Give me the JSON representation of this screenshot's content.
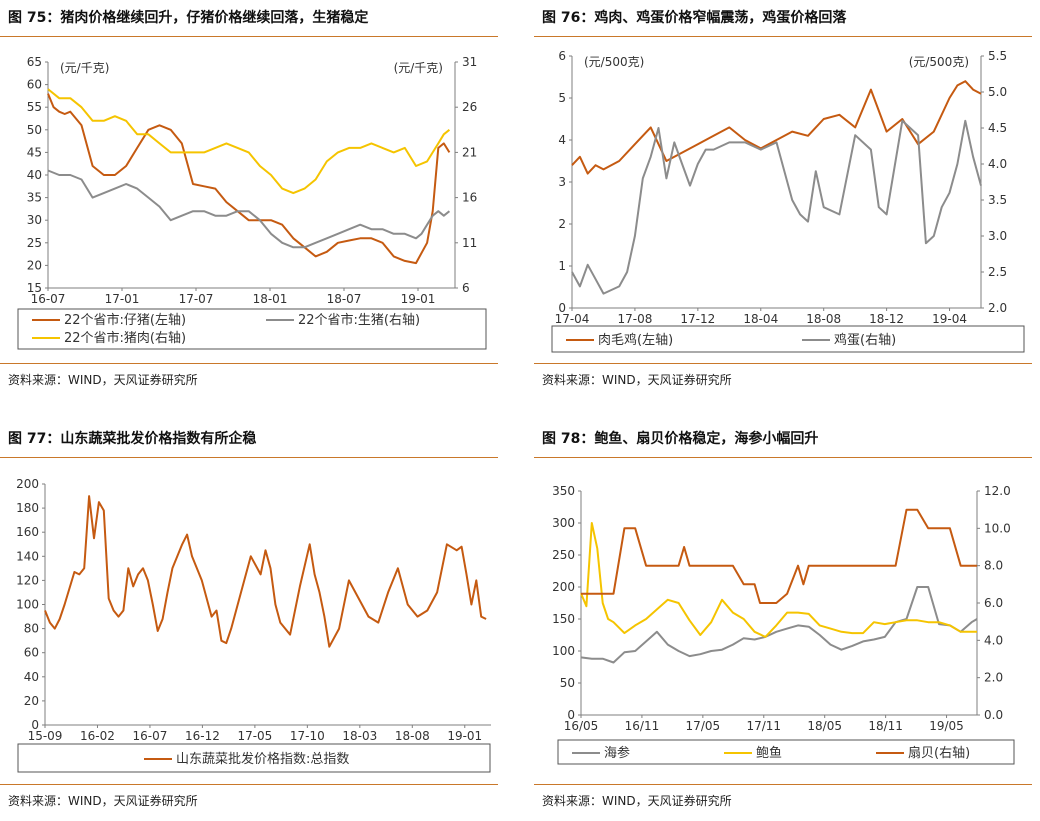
{
  "source_text": "资料来源：WIND，天风证券研究所",
  "colors": {
    "orange": "#c55a11",
    "gray": "#8c8c8c",
    "yellow": "#f5c400",
    "rule": "#c9782a"
  },
  "chart_data": [
    {
      "id": "fig75",
      "type": "line",
      "title": "图 75：猪肉价格继续回升，仔猪价格继续回落，生猪稳定",
      "left_unit": "(元/千克)",
      "right_unit": "(元/千克)",
      "xticks": [
        "16-07",
        "17-01",
        "17-07",
        "18-01",
        "18-07",
        "19-01"
      ],
      "xlim": [
        0,
        36.5
      ],
      "ylim_left": [
        15,
        65
      ],
      "yticks_left": [
        "15",
        "20",
        "25",
        "30",
        "35",
        "40",
        "45",
        "50",
        "55",
        "60",
        "65"
      ],
      "ylim_right": [
        6,
        31
      ],
      "yticks_right": [
        "6",
        "11",
        "16",
        "21",
        "26",
        "31"
      ],
      "legend": [
        "22个省市:仔猪(左轴)",
        "22个省市:生猪(右轴)",
        "22个省市:猪肉(右轴)"
      ],
      "series": [
        {
          "name": "22个省市:仔猪(左轴)",
          "axis": "left",
          "color": "orange",
          "x": [
            0,
            0.5,
            1,
            1.5,
            2,
            3,
            4,
            5,
            6,
            7,
            8,
            9,
            10,
            11,
            12,
            13,
            14,
            15,
            16,
            17,
            18,
            19,
            20,
            21,
            22,
            23,
            24,
            25,
            26,
            27,
            28,
            29,
            30,
            31,
            32,
            33,
            34,
            34.5,
            35,
            35.5,
            36
          ],
          "y": [
            58,
            55,
            54,
            53.5,
            54,
            51,
            42,
            40,
            40,
            42,
            46,
            50,
            51,
            50,
            47,
            38,
            37.5,
            37,
            34,
            32,
            30,
            30,
            30,
            29,
            26,
            24,
            22,
            23,
            25,
            25.5,
            26,
            26,
            25,
            22,
            21,
            20.5,
            25,
            32,
            46,
            47,
            45
          ]
        },
        {
          "name": "22个省市:生猪(右轴)",
          "axis": "right",
          "color": "gray",
          "x": [
            0,
            1,
            2,
            3,
            4,
            5,
            6,
            7,
            8,
            9,
            10,
            11,
            12,
            13,
            14,
            15,
            16,
            17,
            18,
            19,
            20,
            21,
            22,
            23,
            24,
            25,
            26,
            27,
            28,
            29,
            30,
            31,
            32,
            33,
            33.5,
            34,
            34.5,
            35,
            35.5,
            36
          ],
          "y": [
            19,
            18.5,
            18.5,
            18,
            16,
            16.5,
            17,
            17.5,
            17,
            16,
            15,
            13.5,
            14,
            14.5,
            14.5,
            14,
            14,
            14.5,
            14.5,
            13.5,
            12,
            11,
            10.5,
            10.5,
            11,
            11.5,
            12,
            12.5,
            13,
            12.5,
            12.5,
            12,
            12,
            11.5,
            12,
            13,
            14,
            14.5,
            14,
            14.5
          ]
        },
        {
          "name": "22个省市:猪肉(右轴)",
          "axis": "right",
          "color": "yellow",
          "x": [
            0,
            1,
            2,
            3,
            4,
            5,
            6,
            7,
            8,
            9,
            10,
            11,
            12,
            13,
            14,
            15,
            16,
            17,
            18,
            19,
            20,
            21,
            22,
            23,
            24,
            25,
            26,
            27,
            28,
            29,
            30,
            31,
            32,
            33,
            34,
            35,
            35.5,
            36
          ],
          "y": [
            28,
            27,
            27,
            26,
            24.5,
            24.5,
            25,
            24.5,
            23,
            23,
            22,
            21,
            21,
            21,
            21,
            21.5,
            22,
            21.5,
            21,
            19.5,
            18.5,
            17,
            16.5,
            17,
            18,
            20,
            21,
            21.5,
            21.5,
            22,
            21.5,
            21,
            21.5,
            19.5,
            20,
            22,
            23,
            23.5
          ]
        }
      ]
    },
    {
      "id": "fig76",
      "type": "line",
      "title": "图 76：鸡肉、鸡蛋价格窄幅震荡，鸡蛋价格回落",
      "left_unit": "(元/500克)",
      "right_unit": "(元/500克)",
      "xticks": [
        "17-04",
        "17-08",
        "17-12",
        "18-04",
        "18-08",
        "18-12",
        "19-04"
      ],
      "xlim": [
        0,
        26
      ],
      "ylim_left": [
        0,
        6
      ],
      "yticks_left": [
        "0",
        "1",
        "2",
        "3",
        "4",
        "5",
        "6"
      ],
      "ylim_right": [
        2.0,
        5.5
      ],
      "yticks_right": [
        "2.0",
        "2.5",
        "3.0",
        "3.5",
        "4.0",
        "4.5",
        "5.0",
        "5.5"
      ],
      "legend": [
        "肉毛鸡(左轴)",
        "鸡蛋(右轴)"
      ],
      "series": [
        {
          "name": "肉毛鸡(左轴)",
          "axis": "left",
          "color": "orange",
          "x": [
            0,
            0.5,
            1,
            1.5,
            2,
            3,
            4,
            5,
            6,
            7,
            8,
            9,
            10,
            11,
            12,
            13,
            14,
            15,
            16,
            17,
            18,
            19,
            20,
            21,
            22,
            23,
            24,
            24.5,
            25,
            25.5,
            26
          ],
          "y": [
            3.4,
            3.6,
            3.2,
            3.4,
            3.3,
            3.5,
            3.9,
            4.3,
            3.5,
            3.7,
            3.9,
            4.1,
            4.3,
            4.0,
            3.8,
            4.0,
            4.2,
            4.1,
            4.5,
            4.6,
            4.3,
            5.2,
            4.2,
            4.5,
            3.9,
            4.2,
            5.0,
            5.3,
            5.4,
            5.2,
            5.1
          ]
        },
        {
          "name": "鸡蛋(右轴)",
          "axis": "right",
          "color": "gray",
          "x": [
            0,
            0.5,
            1,
            1.5,
            2,
            3,
            3.5,
            4,
            4.5,
            5,
            5.5,
            6,
            6.5,
            7,
            7.5,
            8,
            8.5,
            9,
            10,
            11,
            12,
            13,
            14,
            14.5,
            15,
            15.5,
            16,
            17,
            18,
            19,
            19.5,
            20,
            21,
            22,
            22.5,
            23,
            23.5,
            24,
            24.5,
            25,
            25.5,
            26
          ],
          "y": [
            2.5,
            2.3,
            2.6,
            2.4,
            2.2,
            2.3,
            2.5,
            3.0,
            3.8,
            4.1,
            4.5,
            3.8,
            4.3,
            4.0,
            3.7,
            4.0,
            4.2,
            4.2,
            4.3,
            4.3,
            4.2,
            4.3,
            3.5,
            3.3,
            3.2,
            3.9,
            3.4,
            3.3,
            4.4,
            4.2,
            3.4,
            3.3,
            4.6,
            4.4,
            2.9,
            3.0,
            3.4,
            3.6,
            4.0,
            4.6,
            4.1,
            3.7
          ]
        }
      ]
    },
    {
      "id": "fig77",
      "type": "line",
      "title": "图 77：山东蔬菜批发价格指数有所企稳",
      "xticks": [
        "15-09",
        "16-02",
        "16-07",
        "16-12",
        "17-05",
        "17-10",
        "18-03",
        "18-08",
        "19-01"
      ],
      "xlim": [
        0,
        45.5
      ],
      "ylim_left": [
        0,
        200
      ],
      "yticks_left": [
        "0",
        "20",
        "40",
        "60",
        "80",
        "100",
        "120",
        "140",
        "160",
        "180",
        "200"
      ],
      "legend": [
        "山东蔬菜批发价格指数:总指数"
      ],
      "series": [
        {
          "name": "山东蔬菜批发价格指数:总指数",
          "axis": "left",
          "color": "orange",
          "x": [
            0,
            0.5,
            1,
            1.5,
            2,
            3,
            3.5,
            4,
            4.5,
            5,
            5.5,
            6,
            6.5,
            7,
            7.5,
            8,
            8.5,
            9,
            9.5,
            10,
            10.5,
            11,
            11.5,
            12,
            12.5,
            13,
            13.5,
            14,
            14.5,
            15,
            16,
            17,
            17.5,
            18,
            18.5,
            19,
            20,
            21,
            22,
            22.5,
            23,
            23.5,
            24,
            25,
            26,
            27,
            27.5,
            28,
            28.5,
            29,
            30,
            31,
            32,
            33,
            34,
            35,
            36,
            37,
            38,
            39,
            40,
            41,
            42,
            42.5,
            43,
            43.5,
            44,
            44.5,
            45
          ],
          "y": [
            95,
            85,
            80,
            88,
            100,
            127,
            125,
            130,
            190,
            155,
            185,
            178,
            105,
            95,
            90,
            95,
            130,
            115,
            125,
            130,
            120,
            100,
            78,
            88,
            110,
            130,
            140,
            150,
            158,
            140,
            120,
            90,
            95,
            70,
            68,
            80,
            110,
            140,
            125,
            145,
            130,
            100,
            85,
            75,
            115,
            150,
            125,
            110,
            90,
            65,
            80,
            120,
            105,
            90,
            85,
            110,
            130,
            100,
            90,
            95,
            110,
            150,
            145,
            148,
            125,
            100,
            120,
            90,
            88
          ]
        }
      ]
    },
    {
      "id": "fig78",
      "type": "line",
      "title": "图 78：鲍鱼、扇贝价格稳定，海参小幅回升",
      "xticks": [
        "16/05",
        "16/11",
        "17/05",
        "17/11",
        "18/05",
        "18/11",
        "19/05"
      ],
      "xlim": [
        0,
        36.5
      ],
      "ylim_left": [
        0,
        350
      ],
      "yticks_left": [
        "0",
        "50",
        "100",
        "150",
        "200",
        "250",
        "300",
        "350"
      ],
      "ylim_right": [
        0,
        12
      ],
      "yticks_right": [
        "0.0",
        "2.0",
        "4.0",
        "6.0",
        "8.0",
        "10.0",
        "12.0"
      ],
      "legend": [
        "海参",
        "鲍鱼",
        "扇贝(右轴)"
      ],
      "series": [
        {
          "name": "海参",
          "axis": "left",
          "color": "gray",
          "x": [
            0,
            1,
            2,
            3,
            4,
            5,
            6,
            7,
            8,
            9,
            10,
            11,
            12,
            13,
            14,
            15,
            16,
            17,
            18,
            19,
            20,
            21,
            22,
            23,
            24,
            25,
            26,
            27,
            28,
            29,
            30,
            31,
            32,
            33,
            34,
            35,
            36,
            36.5
          ],
          "y": [
            90,
            88,
            88,
            82,
            98,
            100,
            115,
            130,
            110,
            100,
            92,
            95,
            100,
            102,
            110,
            120,
            118,
            122,
            130,
            135,
            140,
            138,
            125,
            110,
            102,
            108,
            115,
            118,
            122,
            145,
            150,
            200,
            200,
            142,
            140,
            130,
            145,
            150
          ]
        },
        {
          "name": "鲍鱼",
          "axis": "left",
          "color": "yellow",
          "x": [
            0,
            0.5,
            1,
            1.5,
            2,
            2.5,
            3,
            4,
            5,
            6,
            7,
            8,
            9,
            10,
            11,
            12,
            13,
            14,
            15,
            16,
            17,
            18,
            19,
            20,
            21,
            22,
            23,
            24,
            25,
            26,
            27,
            28,
            29,
            30,
            31,
            32,
            33,
            34,
            35,
            36,
            36.5
          ],
          "y": [
            190,
            170,
            300,
            260,
            175,
            150,
            145,
            128,
            140,
            150,
            165,
            180,
            175,
            148,
            125,
            145,
            180,
            160,
            150,
            130,
            122,
            140,
            160,
            160,
            158,
            140,
            135,
            130,
            128,
            128,
            145,
            142,
            145,
            148,
            148,
            145,
            145,
            140,
            130,
            130,
            130
          ]
        },
        {
          "name": "扇贝(右轴)",
          "axis": "right",
          "color": "orange",
          "x": [
            0,
            1,
            2,
            3,
            4,
            5,
            6,
            7,
            8,
            9,
            9.5,
            10,
            11,
            12,
            13,
            14,
            15,
            16,
            16.5,
            17,
            18,
            19,
            20,
            20.5,
            21,
            22,
            23,
            24,
            25,
            26,
            27,
            28,
            29,
            30,
            31,
            32,
            33,
            34,
            35,
            36,
            36.5
          ],
          "y": [
            6.5,
            6.5,
            6.5,
            6.5,
            10,
            10,
            8,
            8,
            8,
            8,
            9,
            8,
            8,
            8,
            8,
            8,
            7,
            7,
            6,
            6,
            6,
            6.5,
            8,
            7,
            8,
            8,
            8,
            8,
            8,
            8,
            8,
            8,
            8,
            11,
            11,
            10,
            10,
            10,
            8,
            8,
            8
          ]
        }
      ]
    }
  ]
}
